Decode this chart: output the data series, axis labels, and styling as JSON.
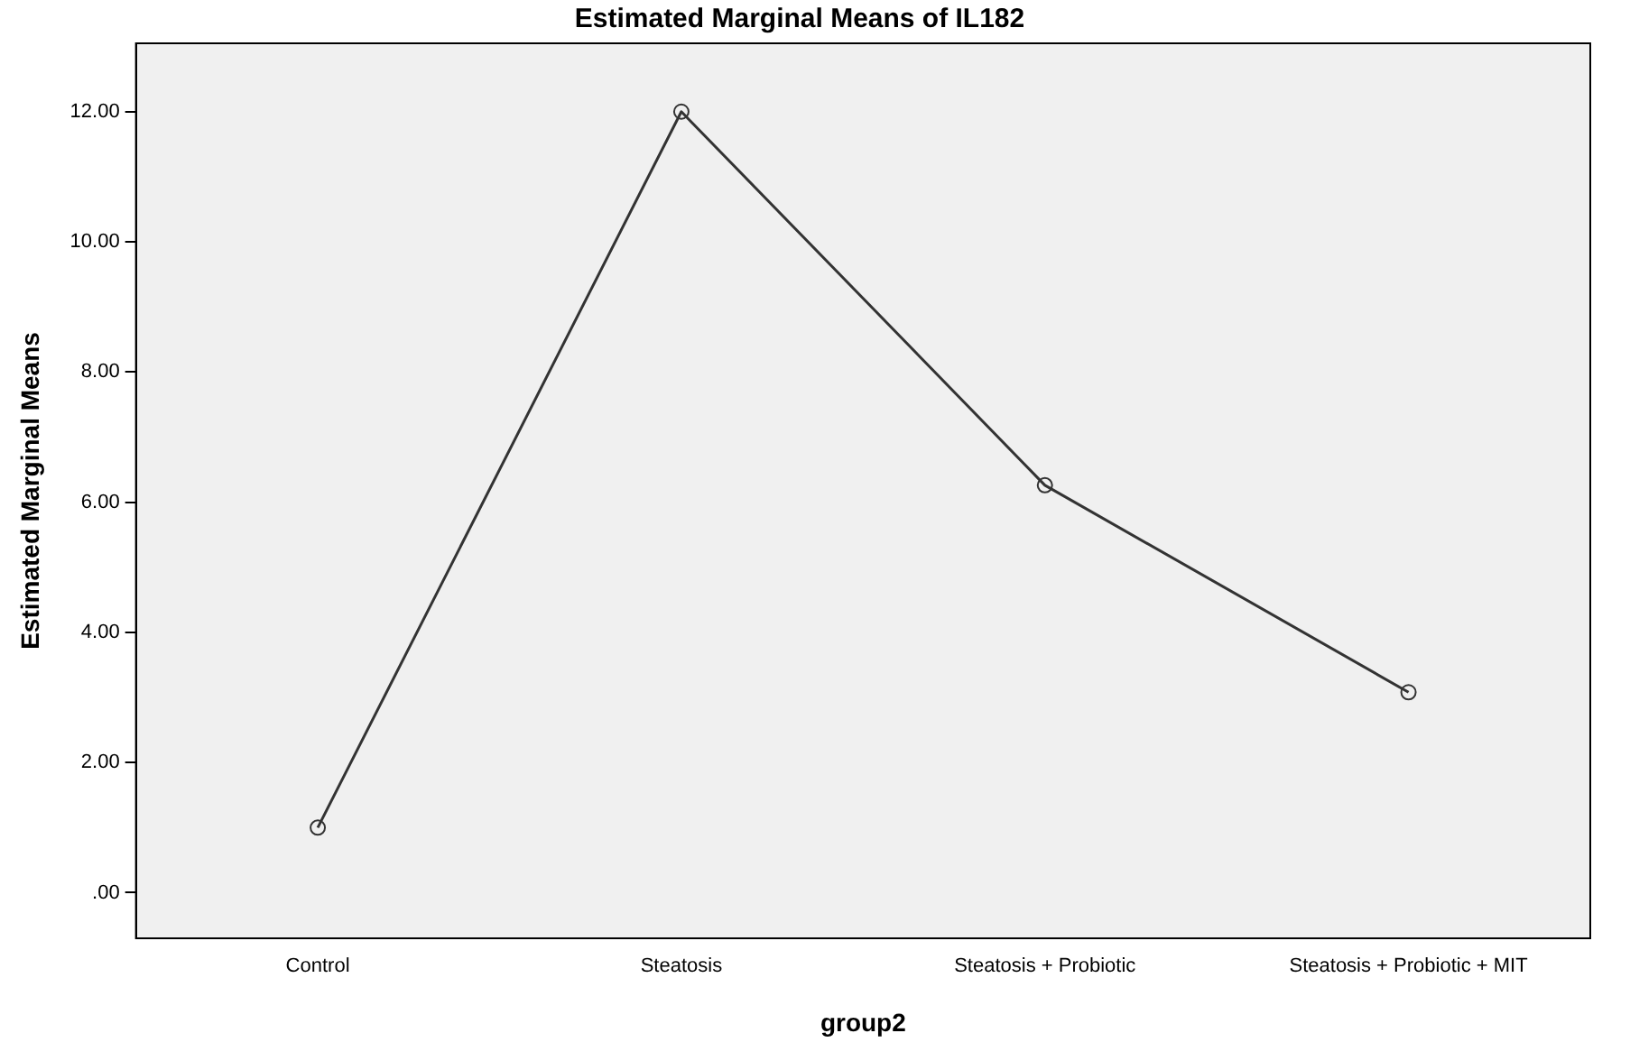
{
  "chart_data": {
    "type": "line",
    "title": "Estimated Marginal Means of IL182",
    "xlabel": "group2",
    "ylabel": "Estimated Marginal Means",
    "categories": [
      "Control",
      "Steatosis",
      "Steatosis + Probiotic",
      "Steatosis + Probiotic + MIT"
    ],
    "series": [
      {
        "color": "#333333",
        "values": [
          1.0,
          12.0,
          6.26,
          3.08
        ]
      }
    ],
    "ylim": [
      -0.7,
      13.05
    ],
    "yticks": [
      {
        "value": 0,
        "label": ".00"
      },
      {
        "value": 2,
        "label": "2.00"
      },
      {
        "value": 4,
        "label": "4.00"
      },
      {
        "value": 6,
        "label": "6.00"
      },
      {
        "value": 8,
        "label": "8.00"
      },
      {
        "value": 10,
        "label": "10.00"
      },
      {
        "value": 12,
        "label": "12.00"
      }
    ],
    "grid": false,
    "legend": false,
    "marker": "circle",
    "line_style": "solid"
  }
}
